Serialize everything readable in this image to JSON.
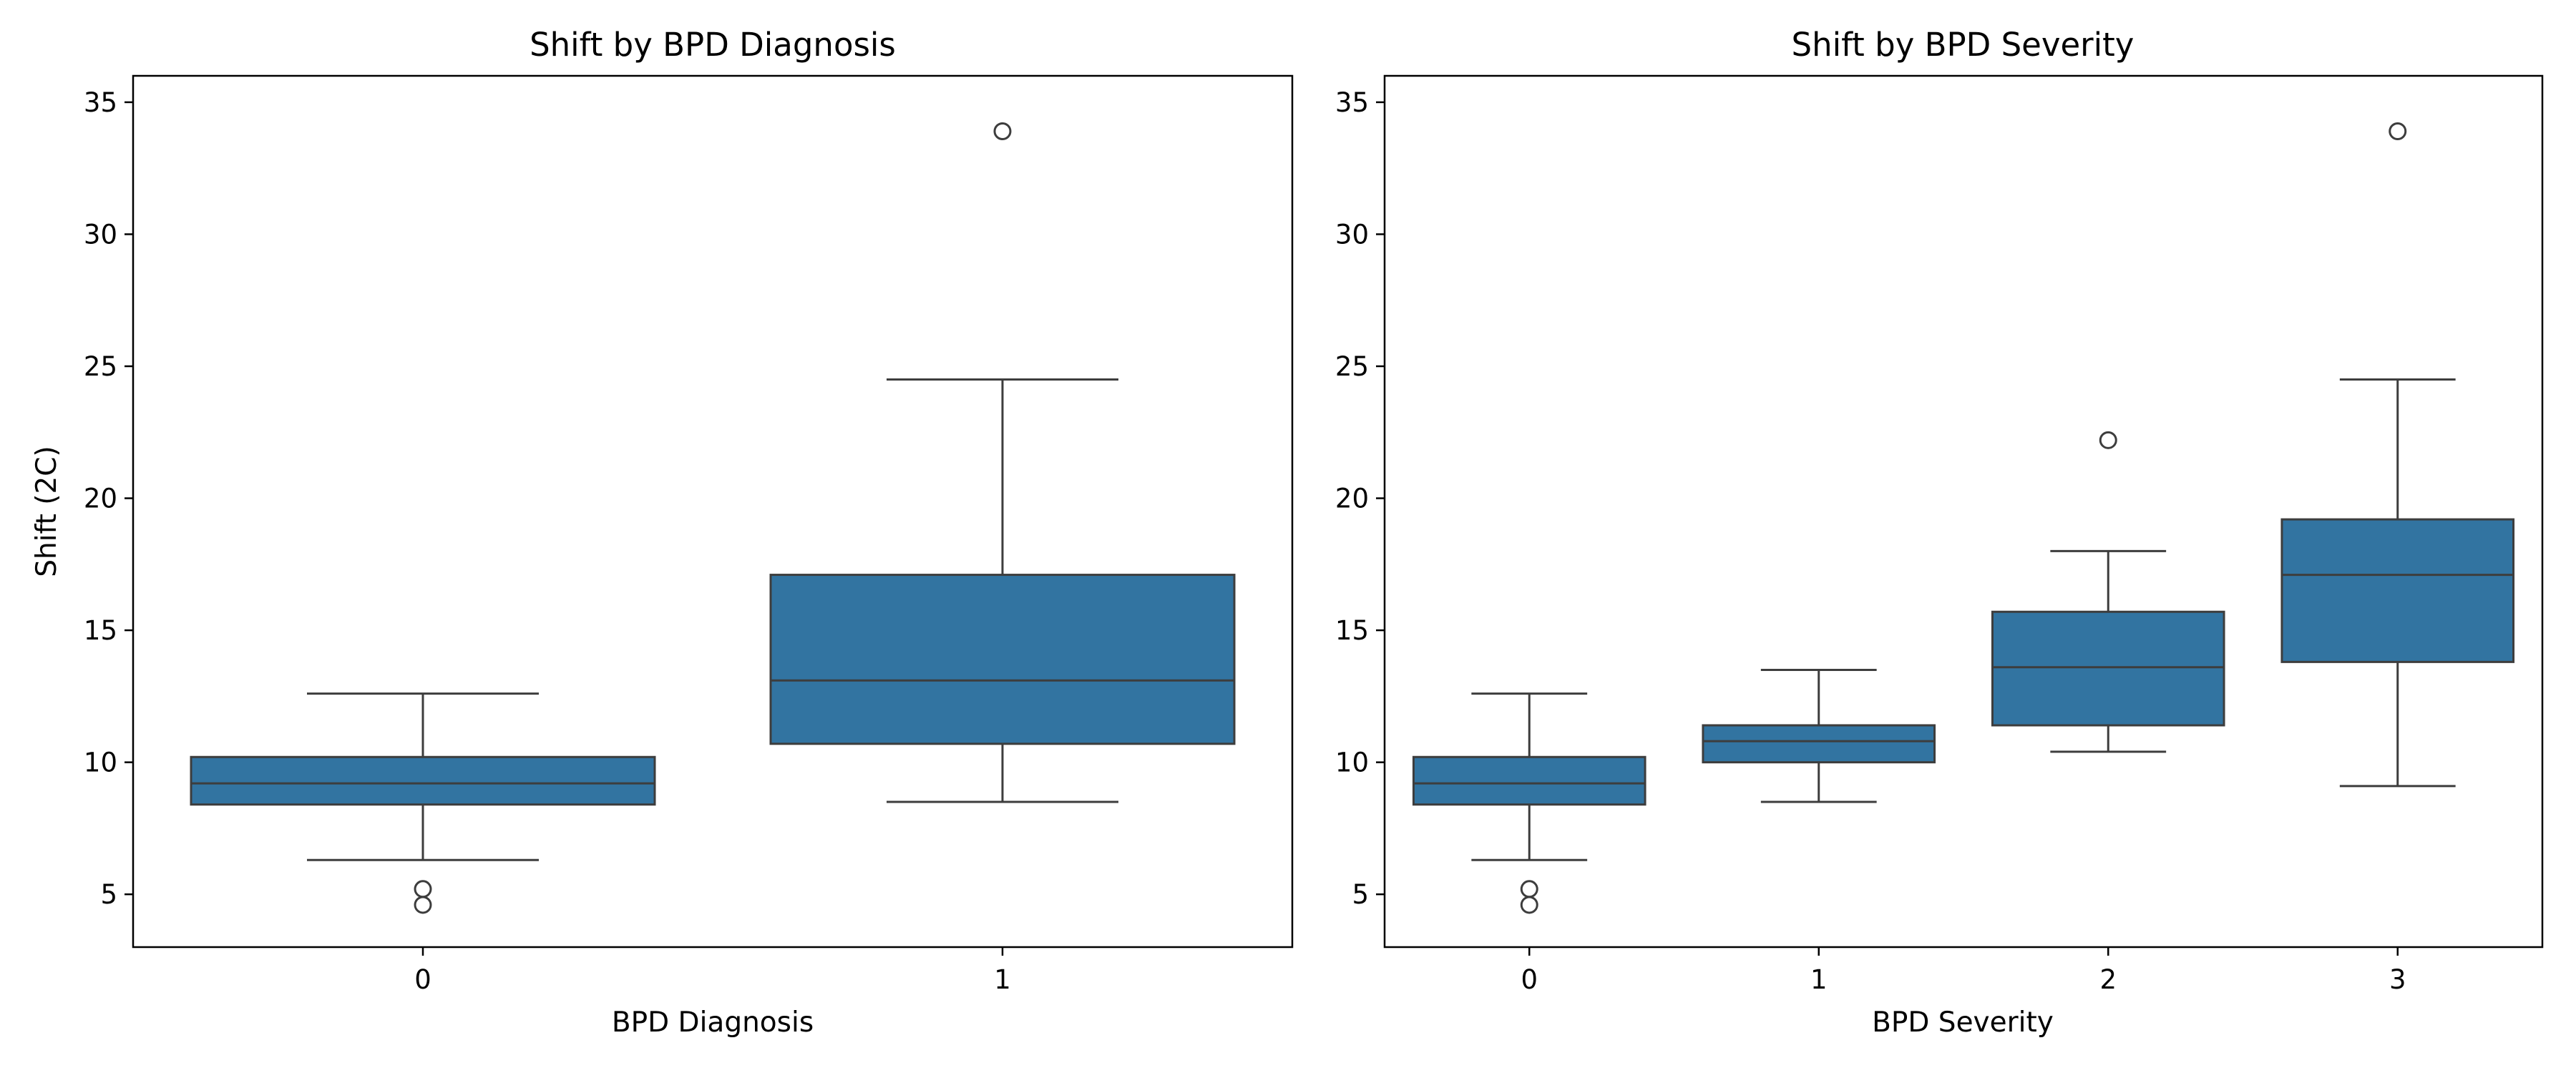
{
  "colors": {
    "box_fill": "#3274a1",
    "line": "#3d3d3d",
    "frame": "#000000"
  },
  "chart_data": [
    {
      "type": "box",
      "title": "Shift by BPD Diagnosis",
      "xlabel": "BPD Diagnosis",
      "ylabel": "Shift (2C)",
      "ylim": [
        3,
        36
      ],
      "yticks": [
        5,
        10,
        15,
        20,
        25,
        30,
        35
      ],
      "categories": [
        "0",
        "1"
      ],
      "boxes": [
        {
          "category": "0",
          "whisker_low": 6.3,
          "q1": 8.4,
          "median": 9.2,
          "q3": 10.2,
          "whisker_high": 12.6,
          "outliers": [
            5.2,
            4.6
          ]
        },
        {
          "category": "1",
          "whisker_low": 8.5,
          "q1": 10.7,
          "median": 13.1,
          "q3": 17.1,
          "whisker_high": 24.5,
          "outliers": [
            33.9
          ]
        }
      ]
    },
    {
      "type": "box",
      "title": "Shift by BPD Severity",
      "xlabel": "BPD Severity",
      "ylabel": "",
      "ylim": [
        3,
        36
      ],
      "yticks": [
        5,
        10,
        15,
        20,
        25,
        30,
        35
      ],
      "categories": [
        "0",
        "1",
        "2",
        "3"
      ],
      "boxes": [
        {
          "category": "0",
          "whisker_low": 6.3,
          "q1": 8.4,
          "median": 9.2,
          "q3": 10.2,
          "whisker_high": 12.6,
          "outliers": [
            5.2,
            4.6
          ]
        },
        {
          "category": "1",
          "whisker_low": 8.5,
          "q1": 10.0,
          "median": 10.8,
          "q3": 11.4,
          "whisker_high": 13.5,
          "outliers": []
        },
        {
          "category": "2",
          "whisker_low": 10.4,
          "q1": 11.4,
          "median": 13.6,
          "q3": 15.7,
          "whisker_high": 18.0,
          "outliers": [
            22.2
          ]
        },
        {
          "category": "3",
          "whisker_low": 9.1,
          "q1": 13.8,
          "median": 17.1,
          "q3": 19.2,
          "whisker_high": 24.5,
          "outliers": [
            33.9
          ]
        }
      ]
    }
  ]
}
